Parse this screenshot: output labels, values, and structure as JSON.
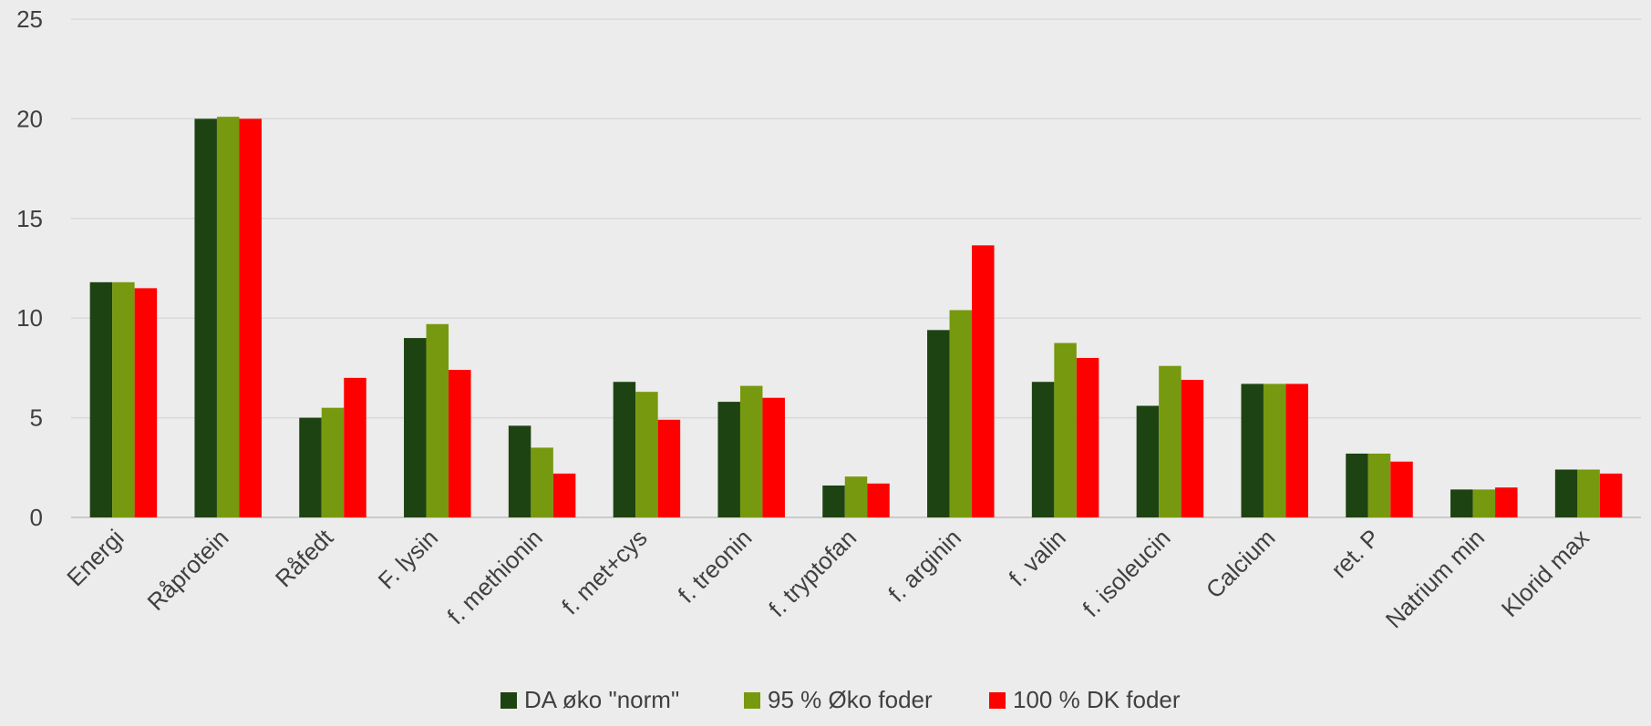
{
  "chart_data": {
    "type": "bar",
    "title": "",
    "xlabel": "",
    "ylabel": "",
    "ylim": [
      0,
      25
    ],
    "yticks": [
      0,
      5,
      10,
      15,
      20,
      25
    ],
    "grid": true,
    "legend_position": "bottom",
    "categories": [
      "Energi",
      "Råprotein",
      "Råfedt",
      "F. lysin",
      "f. methionin",
      "f. met+cys",
      "f. treonin",
      "f. tryptofan",
      "f. arginin",
      "f. valin",
      "f. isoleucin",
      "Calcium",
      "ret. P",
      "Natrium min",
      "Klorid max"
    ],
    "series": [
      {
        "name": "DA øko \"norm\"",
        "color": "#1e4312",
        "values": [
          11.8,
          20.0,
          5.0,
          9.0,
          4.6,
          6.8,
          5.8,
          1.6,
          9.4,
          6.8,
          5.6,
          6.7,
          3.2,
          1.4,
          2.4
        ]
      },
      {
        "name": "95 % Øko foder",
        "color": "#77990f",
        "values": [
          11.8,
          20.1,
          5.5,
          9.7,
          3.5,
          6.3,
          6.6,
          2.05,
          10.4,
          8.75,
          7.6,
          6.7,
          3.2,
          1.4,
          2.4
        ]
      },
      {
        "name": "100 % DK foder",
        "color": "#ff0000",
        "values": [
          11.5,
          20.0,
          7.0,
          7.4,
          2.2,
          4.9,
          6.0,
          1.7,
          13.65,
          8.0,
          6.9,
          6.7,
          2.8,
          1.5,
          2.2
        ]
      }
    ]
  }
}
